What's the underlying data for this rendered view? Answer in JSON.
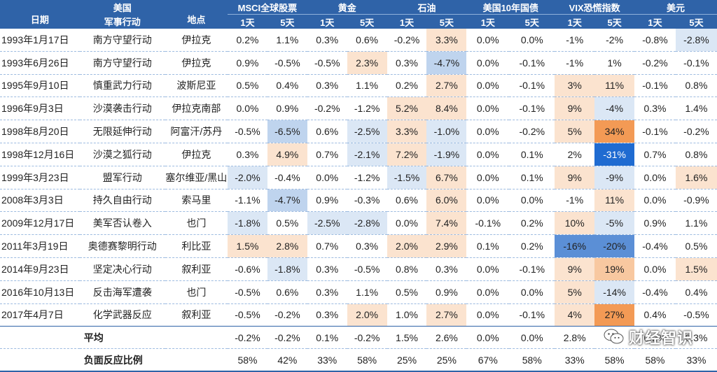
{
  "colors": {
    "header_bg": "#2f63a8",
    "negative_light": "#dbe7f5",
    "negative_mid": "#bfd4ee",
    "negative_strong": "#5b8fd6",
    "negative_deep": "#1f6bd1",
    "positive_light": "#fbe3cf",
    "positive_mid": "#f8c8a0",
    "positive_strong": "#f39a55"
  },
  "header": {
    "date": "日期",
    "operation_top": "美国",
    "operation_bottom": "军事行动",
    "location": "地点",
    "groups": [
      "MSCI全球股票",
      "黄金",
      "石油",
      "美国10年国债",
      "VIX恐慌指数",
      "美元"
    ],
    "day1": "1天",
    "day5": "5天"
  },
  "rows": [
    {
      "date": "1993年1月17日",
      "operation": "南方守望行动",
      "location": "伊拉克",
      "values": [
        "0.2%",
        "1.1%",
        "0.3%",
        "0.6%",
        "-0.2%",
        "3.3%",
        "0.0%",
        "0.0%",
        "-1%",
        "-2%",
        "-0.8%",
        "-2.8%"
      ]
    },
    {
      "date": "1993年6月26日",
      "operation": "南方守望行动",
      "location": "伊拉克",
      "values": [
        "0.9%",
        "-0.5%",
        "-0.5%",
        "2.3%",
        "0.3%",
        "-4.7%",
        "0.0%",
        "-0.1%",
        "-1%",
        "1%",
        "-0.2%",
        "-0.1%"
      ]
    },
    {
      "date": "1995年9月10日",
      "operation": "慎重武力行动",
      "location": "波斯尼亚",
      "values": [
        "0.5%",
        "0.4%",
        "0.3%",
        "1.1%",
        "0.2%",
        "2.7%",
        "0.0%",
        "-0.1%",
        "3%",
        "11%",
        "-0.1%",
        "0.8%"
      ]
    },
    {
      "date": "1996年9月3日",
      "operation": "沙漠袭击行动",
      "location": "伊拉克南部",
      "values": [
        "0.0%",
        "0.9%",
        "-0.2%",
        "-1.2%",
        "5.2%",
        "8.4%",
        "0.0%",
        "-0.1%",
        "9%",
        "-4%",
        "0.3%",
        "1.4%"
      ]
    },
    {
      "date": "1998年8月20日",
      "operation": "无限延伸行动",
      "location": "阿富汗/苏丹",
      "values": [
        "-0.5%",
        "-6.5%",
        "0.6%",
        "-2.5%",
        "3.3%",
        "-1.0%",
        "0.0%",
        "-0.2%",
        "5%",
        "34%",
        "-0.1%",
        "-0.2%"
      ]
    },
    {
      "date": "1998年12月16日",
      "operation": "沙漠之狐行动",
      "location": "伊拉克",
      "values": [
        "0.3%",
        "4.9%",
        "0.7%",
        "-2.1%",
        "7.2%",
        "-1.9%",
        "0.0%",
        "0.1%",
        "2%",
        "-31%",
        "0.7%",
        "0.8%"
      ]
    },
    {
      "date": "1999年3月23日",
      "operation": "盟军行动",
      "location": "塞尔维亚/黑山",
      "values": [
        "-2.0%",
        "-0.4%",
        "0.0%",
        "-1.2%",
        "-1.5%",
        "6.7%",
        "0.0%",
        "0.1%",
        "9%",
        "-9%",
        "0.0%",
        "1.6%"
      ]
    },
    {
      "date": "2008年3月3日",
      "operation": "持久自由行动",
      "location": "索马里",
      "values": [
        "-1.1%",
        "-4.7%",
        "0.9%",
        "-0.3%",
        "0.6%",
        "6.0%",
        "0.0%",
        "0.0%",
        "-1%",
        "11%",
        "0.0%",
        "-0.9%"
      ]
    },
    {
      "date": "2009年12月17日",
      "operation": "美军否认卷入",
      "location": "也门",
      "values": [
        "-1.8%",
        "0.5%",
        "-2.5%",
        "-2.8%",
        "0.0%",
        "7.4%",
        "-0.1%",
        "0.2%",
        "10%",
        "-5%",
        "0.9%",
        "1.1%"
      ]
    },
    {
      "date": "2011年3月19日",
      "operation": "奥德赛黎明行动",
      "location": "利比亚",
      "values": [
        "1.5%",
        "2.8%",
        "0.7%",
        "0.3%",
        "2.0%",
        "2.9%",
        "0.1%",
        "0.2%",
        "-16%",
        "-20%",
        "-0.4%",
        "0.5%"
      ]
    },
    {
      "date": "2014年9月23日",
      "operation": "坚定决心行动",
      "location": "叙利亚",
      "values": [
        "-0.6%",
        "-1.8%",
        "0.3%",
        "-0.5%",
        "0.8%",
        "0.3%",
        "0.0%",
        "-0.1%",
        "9%",
        "19%",
        "0.0%",
        "1.5%"
      ]
    },
    {
      "date": "2016年10月13日",
      "operation": "反击海军遭袭",
      "location": "也门",
      "values": [
        "-0.5%",
        "0.6%",
        "0.3%",
        "1.1%",
        "0.5%",
        "0.9%",
        "0.0%",
        "0.0%",
        "5%",
        "-14%",
        "-0.4%",
        "0.4%"
      ]
    },
    {
      "date": "2017年4月7日",
      "operation": "化学武器反应",
      "location": "叙利亚",
      "values": [
        "-0.5%",
        "-0.2%",
        "0.3%",
        "2.0%",
        "1.0%",
        "2.7%",
        "0.0%",
        "-0.1%",
        "4%",
        "27%",
        "0.4%",
        "-0.5%"
      ]
    }
  ],
  "footer": [
    {
      "label": "平均",
      "values": [
        "-0.2%",
        "-0.2%",
        "0.1%",
        "-0.2%",
        "1.5%",
        "2.6%",
        "0.0%",
        "0.0%",
        "2.8%",
        "4%",
        "0.2%",
        "0.3%"
      ]
    },
    {
      "label": "负面反应比例",
      "values": [
        "58%",
        "42%",
        "33%",
        "58%",
        "25%",
        "25%",
        "67%",
        "58%",
        "33%",
        "58%",
        "58%",
        "33%"
      ]
    }
  ],
  "watermark": {
    "icon": "wechat-icon",
    "text": "财经智识"
  }
}
